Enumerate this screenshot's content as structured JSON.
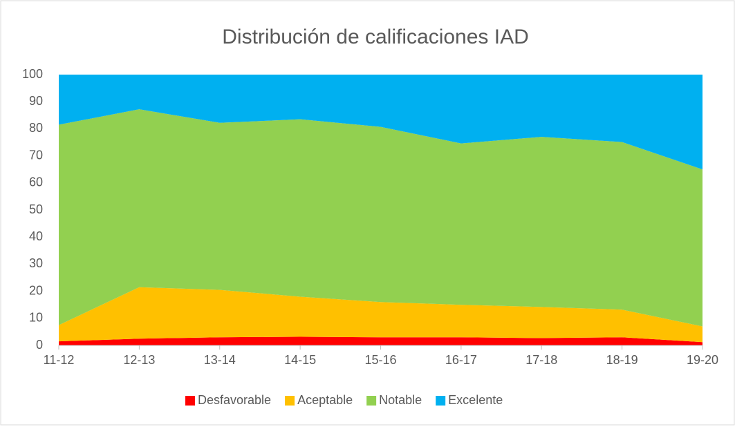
{
  "chart_data": {
    "type": "stacked_area",
    "title": "Distribución de calificaciones IAD",
    "categories": [
      "11-12",
      "12-13",
      "13-14",
      "14-15",
      "15-16",
      "16-17",
      "17-18",
      "18-19",
      "19-20"
    ],
    "series": [
      {
        "name": "Desfavorable",
        "color": "#ff0000",
        "values": [
          1.5,
          2.5,
          3,
          3.2,
          3,
          3,
          2.7,
          3,
          1.2
        ]
      },
      {
        "name": "Aceptable",
        "color": "#ffc000",
        "values": [
          6,
          19,
          17.5,
          14.8,
          13,
          12,
          11.5,
          10.2,
          5.8
        ]
      },
      {
        "name": "Notable",
        "color": "#92d050",
        "values": [
          74,
          65.7,
          61.7,
          65.5,
          64.7,
          59.6,
          62.8,
          61.9,
          58
        ]
      },
      {
        "name": "Excelente",
        "color": "#00b0f0",
        "values": [
          18.5,
          12.8,
          17.8,
          16.5,
          19.3,
          25.4,
          23,
          24.9,
          35
        ]
      }
    ],
    "ylim": [
      0,
      100
    ],
    "yticks": [
      0,
      10,
      20,
      30,
      40,
      50,
      60,
      70,
      80,
      90,
      100
    ],
    "legend": "bottom"
  }
}
